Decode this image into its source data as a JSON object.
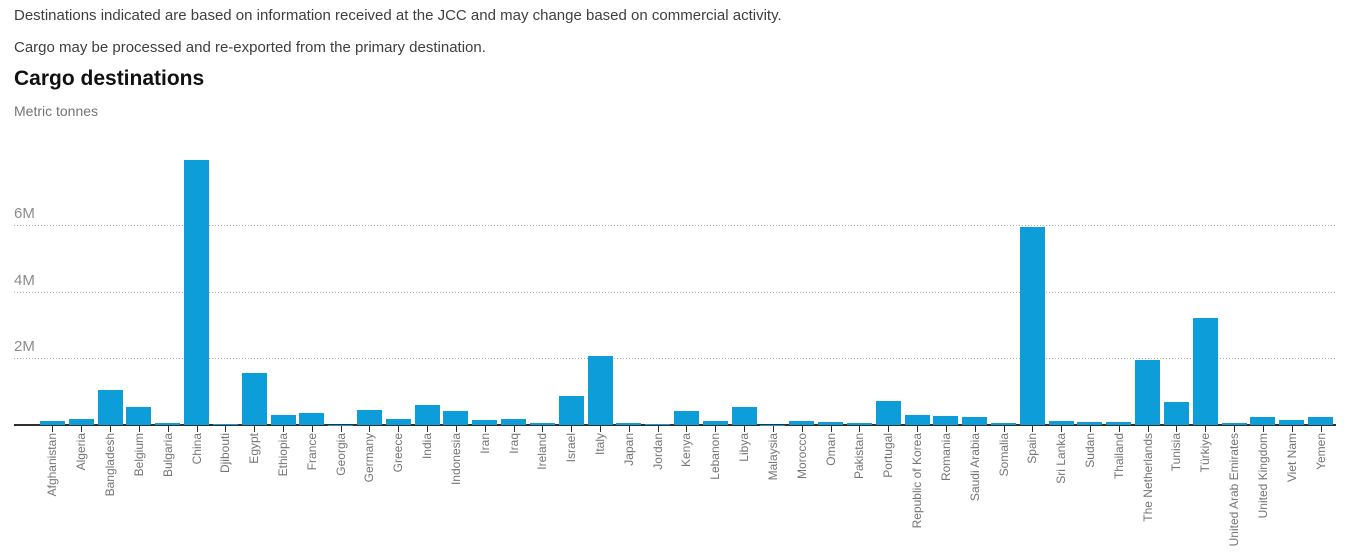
{
  "header": {
    "note1": "Destinations indicated are based on information received at the JCC and may change based on commercial activity.",
    "note2": "Cargo may be processed and re-exported from the primary destination."
  },
  "chart_data": {
    "type": "bar",
    "title": "Cargo destinations",
    "subtitle": "Metric tonnes",
    "xlabel": "",
    "ylabel": "Metric tonnes",
    "unit": "metric tonnes",
    "ylim": [
      0,
      8000000
    ],
    "ytick_values": [
      2000000,
      4000000,
      6000000
    ],
    "ytick_labels": [
      "2M",
      "4M",
      "6M"
    ],
    "grid": "horizontal-dotted",
    "legend": "none",
    "bar_color": "#0d9ed9",
    "categories": [
      "Afghanistan",
      "Algeria",
      "Bangladesh",
      "Belgium",
      "Bulgaria",
      "China",
      "Djibouti",
      "Egypt",
      "Ethiopia",
      "France",
      "Georgia",
      "Germany",
      "Greece",
      "India",
      "Indonesia",
      "Iran",
      "Iraq",
      "Ireland",
      "Israel",
      "Italy",
      "Japan",
      "Jordan",
      "Kenya",
      "Lebanon",
      "Libya",
      "Malaysia",
      "Morocco",
      "Oman",
      "Pakistan",
      "Portugal",
      "Republic of Korea",
      "Romania",
      "Saudi Arabia",
      "Somalia",
      "Spain",
      "Sri Lanka",
      "Sudan",
      "Thailand",
      "The Netherlands",
      "Tunisia",
      "Türkiye",
      "United Arab Emirates",
      "United Kingdom",
      "Viet Nam",
      "Yemen"
    ],
    "values": [
      120000,
      180000,
      1050000,
      530000,
      70000,
      7960000,
      20000,
      1550000,
      300000,
      350000,
      10000,
      460000,
      180000,
      610000,
      410000,
      150000,
      180000,
      60000,
      880000,
      2060000,
      60000,
      20000,
      420000,
      120000,
      550000,
      10000,
      110000,
      80000,
      50000,
      710000,
      300000,
      280000,
      230000,
      50000,
      5940000,
      120000,
      90000,
      100000,
      1950000,
      690000,
      3200000,
      50000,
      230000,
      150000,
      250000
    ]
  },
  "colors": {
    "bar": "#0d9ed9",
    "axis_line": "#2f2f2f",
    "gridline": "#aeaeae",
    "note_text": "#3d4043",
    "title_text": "#111111",
    "subtitle_text": "#757575",
    "ytick_text": "#8c8c8c",
    "xlabel_text": "#757575",
    "background": "#ffffff"
  }
}
